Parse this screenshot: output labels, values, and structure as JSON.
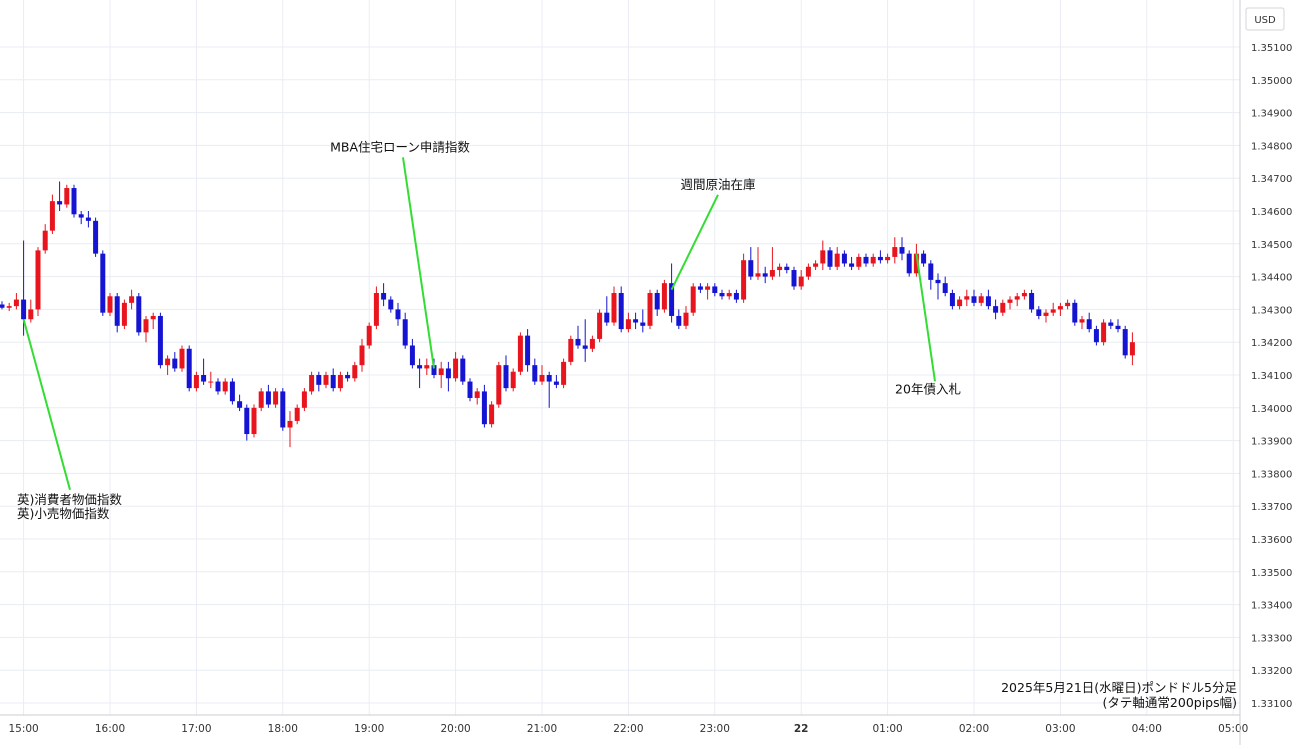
{
  "chart_data": {
    "type": "candlestick",
    "title": "2025年5月21日(水曜日)ポンドドル5分足",
    "subtitle": "(タテ軸通常200pips幅)",
    "currency_label": "USD",
    "ylim": [
      1.331,
      1.3515
    ],
    "y_ticks": [
      "1.35100",
      "1.35000",
      "1.34900",
      "1.34800",
      "1.34700",
      "1.34600",
      "1.34500",
      "1.34400",
      "1.34300",
      "1.34200",
      "1.34100",
      "1.34000",
      "1.33900",
      "1.33800",
      "1.33700",
      "1.33600",
      "1.33500",
      "1.33400",
      "1.33300",
      "1.33200",
      "1.33100"
    ],
    "x_ticks": [
      {
        "label": "15:00",
        "bar": 3
      },
      {
        "label": "16:00",
        "bar": 15
      },
      {
        "label": "17:00",
        "bar": 27
      },
      {
        "label": "18:00",
        "bar": 39
      },
      {
        "label": "19:00",
        "bar": 51
      },
      {
        "label": "20:00",
        "bar": 63
      },
      {
        "label": "21:00",
        "bar": 75
      },
      {
        "label": "22:00",
        "bar": 87
      },
      {
        "label": "23:00",
        "bar": 99
      },
      {
        "label": "22",
        "bar": 111
      },
      {
        "label": "01:00",
        "bar": 123
      },
      {
        "label": "02:00",
        "bar": 135
      },
      {
        "label": "03:00",
        "bar": 147
      },
      {
        "label": "04:00",
        "bar": 159
      },
      {
        "label": "05:00",
        "bar": 171
      }
    ],
    "colors": {
      "up": "#e8141e",
      "down": "#1414d2",
      "grid": "#e8edf3",
      "annotation": "#33dd33",
      "axis_text": "#333333"
    },
    "candles": [
      [
        1.34315,
        1.34325,
        1.343,
        1.34305
      ],
      [
        1.34305,
        1.3432,
        1.34295,
        1.3431
      ],
      [
        1.3431,
        1.3435,
        1.343,
        1.3433
      ],
      [
        1.3433,
        1.3451,
        1.3422,
        1.3427
      ],
      [
        1.3427,
        1.3433,
        1.3426,
        1.343
      ],
      [
        1.343,
        1.3449,
        1.3428,
        1.3448
      ],
      [
        1.3448,
        1.3456,
        1.3447,
        1.3454
      ],
      [
        1.3454,
        1.3465,
        1.3453,
        1.3463
      ],
      [
        1.3463,
        1.3469,
        1.346,
        1.3462
      ],
      [
        1.3462,
        1.3468,
        1.3461,
        1.3467
      ],
      [
        1.3467,
        1.3468,
        1.3458,
        1.3459
      ],
      [
        1.3459,
        1.346,
        1.3456,
        1.3458
      ],
      [
        1.3458,
        1.346,
        1.3455,
        1.3457
      ],
      [
        1.3457,
        1.3458,
        1.3446,
        1.3447
      ],
      [
        1.3447,
        1.3448,
        1.3428,
        1.3429
      ],
      [
        1.3429,
        1.3435,
        1.3428,
        1.3434
      ],
      [
        1.3434,
        1.3435,
        1.3423,
        1.3425
      ],
      [
        1.3425,
        1.3433,
        1.3424,
        1.3432
      ],
      [
        1.3432,
        1.3436,
        1.343,
        1.3434
      ],
      [
        1.3434,
        1.3435,
        1.3422,
        1.3423
      ],
      [
        1.3423,
        1.3428,
        1.342,
        1.3427
      ],
      [
        1.3427,
        1.3429,
        1.3424,
        1.3428
      ],
      [
        1.3428,
        1.3429,
        1.3412,
        1.3413
      ],
      [
        1.3413,
        1.3416,
        1.341,
        1.3415
      ],
      [
        1.3415,
        1.3417,
        1.3411,
        1.3412
      ],
      [
        1.3412,
        1.3419,
        1.3411,
        1.3418
      ],
      [
        1.3418,
        1.3419,
        1.3405,
        1.3406
      ],
      [
        1.3406,
        1.3411,
        1.3405,
        1.341
      ],
      [
        1.341,
        1.3415,
        1.3407,
        1.3408
      ],
      [
        1.3408,
        1.3411,
        1.3406,
        1.3408
      ],
      [
        1.3408,
        1.3409,
        1.3404,
        1.3405
      ],
      [
        1.3405,
        1.3409,
        1.3404,
        1.3408
      ],
      [
        1.3408,
        1.3409,
        1.3401,
        1.3402
      ],
      [
        1.3402,
        1.3404,
        1.3399,
        1.34
      ],
      [
        1.34,
        1.3401,
        1.339,
        1.3392
      ],
      [
        1.3392,
        1.3401,
        1.3391,
        1.34
      ],
      [
        1.34,
        1.3406,
        1.3399,
        1.3405
      ],
      [
        1.3405,
        1.3407,
        1.34,
        1.3401
      ],
      [
        1.3401,
        1.3406,
        1.34,
        1.3405
      ],
      [
        1.3405,
        1.3406,
        1.3393,
        1.3394
      ],
      [
        1.3394,
        1.3399,
        1.3388,
        1.3396
      ],
      [
        1.3396,
        1.3401,
        1.3395,
        1.34
      ],
      [
        1.34,
        1.3406,
        1.3399,
        1.3405
      ],
      [
        1.3405,
        1.3411,
        1.3404,
        1.341
      ],
      [
        1.341,
        1.3411,
        1.3405,
        1.3407
      ],
      [
        1.3407,
        1.3411,
        1.3406,
        1.341
      ],
      [
        1.341,
        1.3412,
        1.3405,
        1.3406
      ],
      [
        1.3406,
        1.3411,
        1.3405,
        1.341
      ],
      [
        1.341,
        1.3411,
        1.3408,
        1.3409
      ],
      [
        1.3409,
        1.3414,
        1.3408,
        1.3413
      ],
      [
        1.3413,
        1.3421,
        1.3411,
        1.3419
      ],
      [
        1.3419,
        1.3426,
        1.3418,
        1.3425
      ],
      [
        1.3425,
        1.3437,
        1.3424,
        1.3435
      ],
      [
        1.3435,
        1.3438,
        1.3431,
        1.3433
      ],
      [
        1.3433,
        1.3434,
        1.3429,
        1.343
      ],
      [
        1.343,
        1.3432,
        1.3425,
        1.3427
      ],
      [
        1.3427,
        1.3429,
        1.3418,
        1.3419
      ],
      [
        1.3419,
        1.3421,
        1.3412,
        1.3413
      ],
      [
        1.3413,
        1.3415,
        1.3406,
        1.3412
      ],
      [
        1.3412,
        1.3415,
        1.341,
        1.3413
      ],
      [
        1.3413,
        1.3415,
        1.3409,
        1.341
      ],
      [
        1.341,
        1.3414,
        1.3406,
        1.3412
      ],
      [
        1.3412,
        1.3414,
        1.3405,
        1.3409
      ],
      [
        1.3409,
        1.3417,
        1.3408,
        1.3415
      ],
      [
        1.3415,
        1.3416,
        1.3407,
        1.3408
      ],
      [
        1.3408,
        1.3409,
        1.3402,
        1.3403
      ],
      [
        1.3403,
        1.3406,
        1.3401,
        1.3405
      ],
      [
        1.3405,
        1.3407,
        1.3394,
        1.3395
      ],
      [
        1.3395,
        1.3402,
        1.3394,
        1.3401
      ],
      [
        1.3401,
        1.3414,
        1.34,
        1.3413
      ],
      [
        1.3413,
        1.3416,
        1.3405,
        1.3406
      ],
      [
        1.3406,
        1.3412,
        1.3405,
        1.3411
      ],
      [
        1.3411,
        1.3423,
        1.341,
        1.3422
      ],
      [
        1.3422,
        1.3424,
        1.3411,
        1.3413
      ],
      [
        1.3413,
        1.3415,
        1.3407,
        1.3408
      ],
      [
        1.3408,
        1.3413,
        1.3407,
        1.341
      ],
      [
        1.341,
        1.3411,
        1.34,
        1.3408
      ],
      [
        1.3408,
        1.341,
        1.3406,
        1.3407
      ],
      [
        1.3407,
        1.3415,
        1.3406,
        1.3414
      ],
      [
        1.3414,
        1.3422,
        1.3413,
        1.3421
      ],
      [
        1.3421,
        1.3425,
        1.3418,
        1.3419
      ],
      [
        1.3419,
        1.3427,
        1.3414,
        1.3418
      ],
      [
        1.3418,
        1.3422,
        1.3417,
        1.3421
      ],
      [
        1.3421,
        1.343,
        1.342,
        1.3429
      ],
      [
        1.3429,
        1.3434,
        1.3425,
        1.3426
      ],
      [
        1.3426,
        1.3437,
        1.3425,
        1.3435
      ],
      [
        1.3435,
        1.3437,
        1.3423,
        1.3424
      ],
      [
        1.3424,
        1.3429,
        1.3423,
        1.3427
      ],
      [
        1.3427,
        1.3429,
        1.3424,
        1.3426
      ],
      [
        1.3426,
        1.343,
        1.3423,
        1.3425
      ],
      [
        1.3425,
        1.3436,
        1.3424,
        1.3435
      ],
      [
        1.3435,
        1.3436,
        1.3428,
        1.343
      ],
      [
        1.343,
        1.3439,
        1.3429,
        1.3438
      ],
      [
        1.3438,
        1.3444,
        1.3426,
        1.3428
      ],
      [
        1.3428,
        1.343,
        1.3424,
        1.3425
      ],
      [
        1.3425,
        1.3431,
        1.3424,
        1.3429
      ],
      [
        1.3429,
        1.3438,
        1.3428,
        1.3437
      ],
      [
        1.3437,
        1.3438,
        1.3435,
        1.3436
      ],
      [
        1.3436,
        1.3438,
        1.3433,
        1.3437
      ],
      [
        1.3437,
        1.3438,
        1.3434,
        1.3435
      ],
      [
        1.3435,
        1.3436,
        1.3433,
        1.3434
      ],
      [
        1.3434,
        1.3436,
        1.3433,
        1.3435
      ],
      [
        1.3435,
        1.3436,
        1.3432,
        1.3433
      ],
      [
        1.3433,
        1.3447,
        1.3432,
        1.3445
      ],
      [
        1.3445,
        1.3449,
        1.3439,
        1.344
      ],
      [
        1.344,
        1.3449,
        1.3439,
        1.3441
      ],
      [
        1.3441,
        1.3443,
        1.3438,
        1.344
      ],
      [
        1.344,
        1.3449,
        1.3439,
        1.3442
      ],
      [
        1.3442,
        1.3444,
        1.344,
        1.3443
      ],
      [
        1.3443,
        1.3444,
        1.3441,
        1.3442
      ],
      [
        1.3442,
        1.3443,
        1.3436,
        1.3437
      ],
      [
        1.3437,
        1.3442,
        1.3436,
        1.344
      ],
      [
        1.344,
        1.3444,
        1.3439,
        1.3443
      ],
      [
        1.3443,
        1.3445,
        1.3442,
        1.3444
      ],
      [
        1.3444,
        1.3451,
        1.3442,
        1.3448
      ],
      [
        1.3448,
        1.3449,
        1.3442,
        1.3443
      ],
      [
        1.3443,
        1.3449,
        1.3442,
        1.3447
      ],
      [
        1.3447,
        1.3448,
        1.3443,
        1.3444
      ],
      [
        1.3444,
        1.3446,
        1.3442,
        1.3443
      ],
      [
        1.3443,
        1.3447,
        1.3442,
        1.3446
      ],
      [
        1.3446,
        1.3447,
        1.3443,
        1.3444
      ],
      [
        1.3444,
        1.3447,
        1.3443,
        1.3446
      ],
      [
        1.3446,
        1.3448,
        1.3444,
        1.3445
      ],
      [
        1.3445,
        1.3447,
        1.3444,
        1.3446
      ],
      [
        1.3446,
        1.3452,
        1.3444,
        1.3449
      ],
      [
        1.3449,
        1.3452,
        1.3445,
        1.3447
      ],
      [
        1.3447,
        1.3448,
        1.344,
        1.3441
      ],
      [
        1.3441,
        1.345,
        1.344,
        1.3447
      ],
      [
        1.3447,
        1.3448,
        1.3443,
        1.3444
      ],
      [
        1.3444,
        1.3445,
        1.3436,
        1.3439
      ],
      [
        1.3439,
        1.3441,
        1.3433,
        1.3438
      ],
      [
        1.3438,
        1.344,
        1.3434,
        1.3435
      ],
      [
        1.3435,
        1.3436,
        1.343,
        1.3431
      ],
      [
        1.3431,
        1.3434,
        1.343,
        1.3433
      ],
      [
        1.3433,
        1.3436,
        1.3431,
        1.3434
      ],
      [
        1.3434,
        1.3436,
        1.3431,
        1.3432
      ],
      [
        1.3432,
        1.3435,
        1.3431,
        1.3434
      ],
      [
        1.3434,
        1.3436,
        1.343,
        1.3431
      ],
      [
        1.3431,
        1.3433,
        1.3427,
        1.3429
      ],
      [
        1.3429,
        1.3433,
        1.3428,
        1.3432
      ],
      [
        1.3432,
        1.3434,
        1.343,
        1.3433
      ],
      [
        1.3433,
        1.3435,
        1.3431,
        1.3434
      ],
      [
        1.3434,
        1.3436,
        1.3433,
        1.3435
      ],
      [
        1.3435,
        1.3436,
        1.3429,
        1.343
      ],
      [
        1.343,
        1.3431,
        1.3427,
        1.3428
      ],
      [
        1.3428,
        1.343,
        1.3426,
        1.3429
      ],
      [
        1.3429,
        1.3432,
        1.3428,
        1.343
      ],
      [
        1.343,
        1.3432,
        1.3428,
        1.3431
      ],
      [
        1.3431,
        1.3433,
        1.343,
        1.3432
      ],
      [
        1.3432,
        1.3433,
        1.3425,
        1.3426
      ],
      [
        1.3426,
        1.3428,
        1.3424,
        1.3427
      ],
      [
        1.3427,
        1.3429,
        1.3423,
        1.3424
      ],
      [
        1.3424,
        1.3425,
        1.3419,
        1.342
      ],
      [
        1.342,
        1.3427,
        1.3419,
        1.3426
      ],
      [
        1.3426,
        1.3427,
        1.3424,
        1.3425
      ],
      [
        1.3425,
        1.3427,
        1.3423,
        1.3424
      ],
      [
        1.3424,
        1.3425,
        1.3415,
        1.3416
      ],
      [
        1.3416,
        1.3423,
        1.3413,
        1.342
      ]
    ],
    "annotations": [
      {
        "text": "英)消費者物価指数",
        "text2": "英)小売物価指数",
        "from_bar": 3,
        "from_price": 1.3427,
        "to_price": 1.3375
      },
      {
        "text": "MBA住宅ローン申請指数",
        "from_bar": 60,
        "from_price": 1.3412,
        "to_price": 1.348
      },
      {
        "text": "週間原油在庫",
        "from_bar": 93,
        "from_price": 1.3436,
        "to_price": 1.3468
      },
      {
        "text": "20年債入札",
        "from_bar": 127,
        "from_price": 1.3447,
        "to_price": 1.3405
      }
    ]
  }
}
